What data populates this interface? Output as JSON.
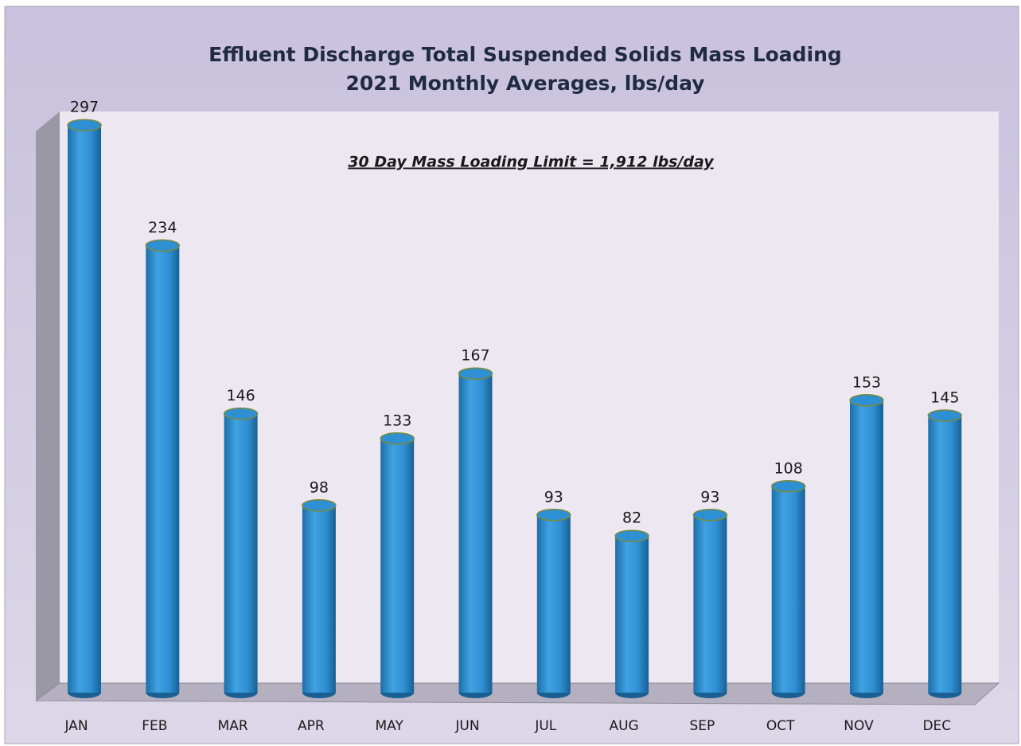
{
  "chart_data": {
    "type": "bar",
    "title": "Effluent Discharge  Total Suspended Solids Mass Loading",
    "subtitle": "2021 Monthly Averages, lbs/day",
    "annotation": "30 Day Mass  Loading Limit = 1,912 lbs/day",
    "categories": [
      "JAN",
      "FEB",
      "MAR",
      "APR",
      "MAY",
      "JUN",
      "JUL",
      "AUG",
      "SEP",
      "OCT",
      "NOV",
      "DEC"
    ],
    "values": [
      297,
      234,
      146,
      98,
      133,
      167,
      93,
      82,
      93,
      108,
      153,
      145
    ],
    "color": "#2f8fd3"
  }
}
